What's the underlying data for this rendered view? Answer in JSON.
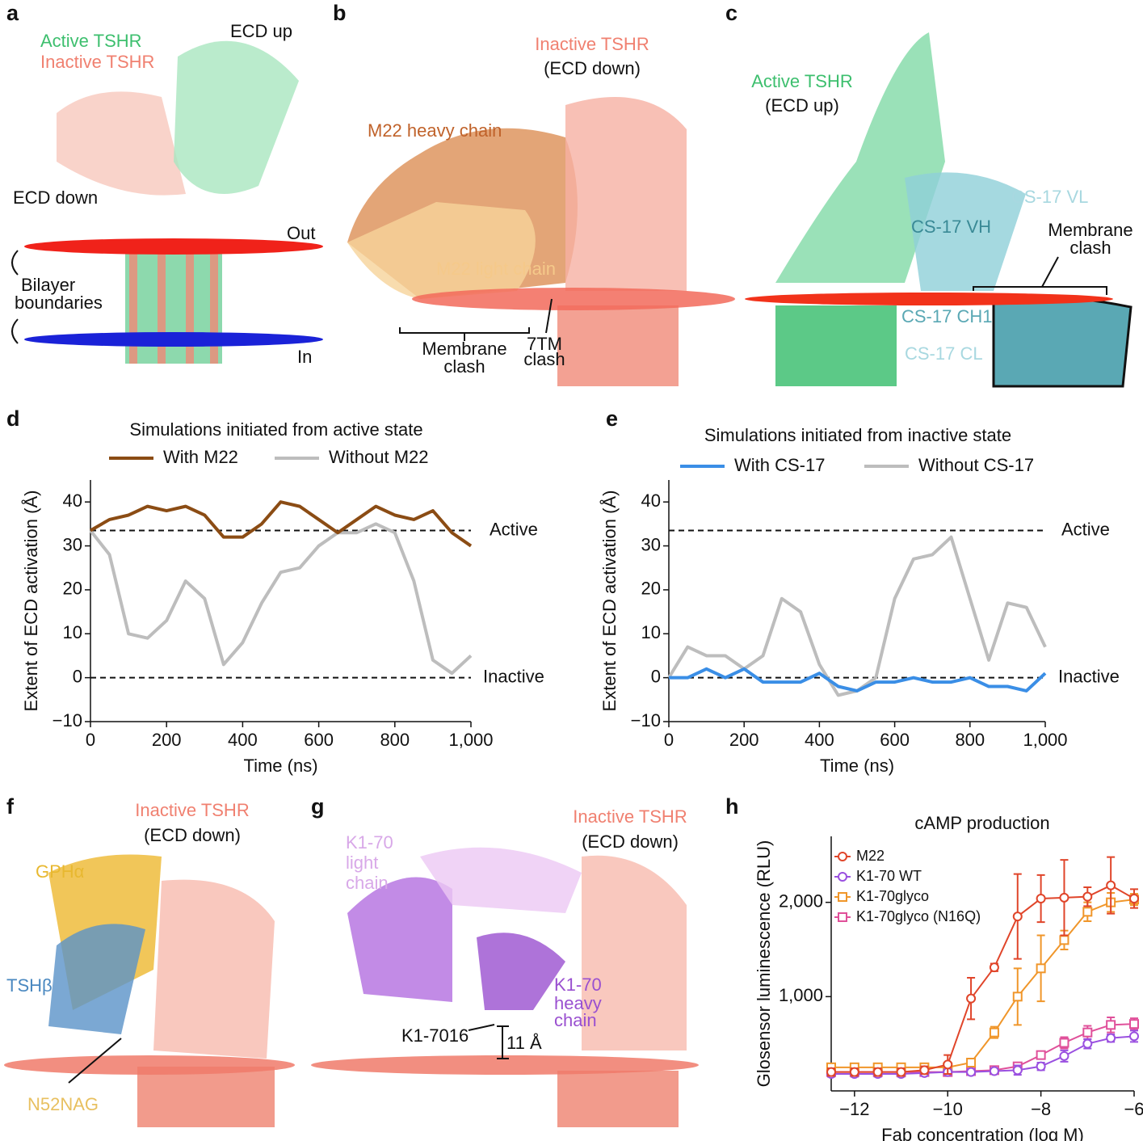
{
  "figure": {
    "a": {
      "panel": "a",
      "active": "Active TSHR",
      "inactive": "Inactive TSHR",
      "ecd_up": "ECD up",
      "ecd_down": "ECD down",
      "out": "Out",
      "bilayer": [
        "Bilayer",
        "boundaries"
      ],
      "in": "In"
    },
    "b": {
      "panel": "b",
      "title": [
        "Inactive TSHR",
        "(ECD down)"
      ],
      "heavy": "M22 heavy chain",
      "light": "M22 light chain",
      "membrane_clash": [
        "Membrane",
        "clash"
      ],
      "tm_clash": [
        "7TM",
        "clash"
      ]
    },
    "c": {
      "panel": "c",
      "title": [
        "Active TSHR",
        "(ECD up)"
      ],
      "vl": "CS-17 VL",
      "vh": "CS-17 VH",
      "membrane_clash": [
        "Membrane",
        "clash"
      ],
      "ch": "CS-17 CH1",
      "cl": "CS-17 CL"
    },
    "f": {
      "panel": "f",
      "title": [
        "Inactive TSHR",
        "(ECD down)"
      ],
      "gpha": "GPHα",
      "tshb": "TSHβ",
      "n52": "N52NAG"
    },
    "g": {
      "panel": "g",
      "title": [
        "Inactive TSHR",
        "(ECD down)"
      ],
      "light": [
        "K1-70",
        "light",
        "chain"
      ],
      "heavy": [
        "K1-70",
        "heavy",
        "chain"
      ],
      "k170": "K1-7016",
      "dist": "11 Å"
    },
    "h": {
      "panel": "h"
    },
    "d": {
      "panel": "d"
    },
    "e": {
      "panel": "e"
    }
  },
  "chart_data": [
    {
      "type": "line",
      "title": "Simulations initiated from active state",
      "x_label": "Time (ns)",
      "y_label": "Extent of ECD activation (Å)",
      "x": [
        0,
        50,
        100,
        150,
        200,
        250,
        300,
        350,
        400,
        450,
        500,
        550,
        600,
        650,
        700,
        750,
        800,
        850,
        900,
        950,
        1000
      ],
      "series": [
        {
          "name": "With M22",
          "color": "#8b4c14",
          "values": [
            33.5,
            36,
            37,
            39,
            38,
            39,
            37,
            32,
            32,
            35,
            40,
            39,
            36,
            33,
            36,
            39,
            37,
            36,
            38,
            33,
            30
          ]
        },
        {
          "name": "Without M22",
          "color": "#bdbdbd",
          "values": [
            33.5,
            28,
            10,
            9,
            13,
            22,
            18,
            3,
            8,
            17,
            24,
            25,
            30,
            33,
            33,
            35,
            33,
            22,
            4,
            1,
            5
          ]
        }
      ],
      "reference_lines": [
        {
          "value": 33.5,
          "label": "Active"
        },
        {
          "value": 0,
          "label": "Inactive"
        }
      ],
      "xlim": [
        0,
        1000
      ],
      "ylim": [
        -10,
        45
      ],
      "xticks": [
        0,
        200,
        400,
        600,
        800,
        {
          "value": 1000,
          "label": "1,000"
        }
      ],
      "yticks": [
        {
          "value": -10,
          "label": "−10"
        },
        0,
        10,
        20,
        30,
        40
      ]
    },
    {
      "type": "line",
      "title": "Simulations initiated from inactive state",
      "x_label": "Time (ns)",
      "y_label": "Extent of ECD activation (Å)",
      "x": [
        0,
        50,
        100,
        150,
        200,
        250,
        300,
        350,
        400,
        450,
        500,
        550,
        600,
        650,
        700,
        750,
        800,
        850,
        900,
        950,
        1000
      ],
      "series": [
        {
          "name": "With CS-17",
          "color": "#3a8ee6",
          "values": [
            0,
            0,
            2,
            0,
            2,
            -1,
            -1,
            -1,
            1,
            -2,
            -3,
            -1,
            -1,
            0,
            -1,
            -1,
            0,
            -2,
            -2,
            -3,
            1
          ]
        },
        {
          "name": "Without CS-17",
          "color": "#bdbdbd",
          "values": [
            0,
            7,
            5,
            5,
            2,
            5,
            18,
            15,
            3,
            -4,
            -3,
            0,
            18,
            27,
            28,
            32,
            18,
            4,
            17,
            16,
            7
          ]
        }
      ],
      "reference_lines": [
        {
          "value": 33.5,
          "label": "Active"
        },
        {
          "value": 0,
          "label": "Inactive"
        }
      ],
      "xlim": [
        0,
        1000
      ],
      "ylim": [
        -10,
        45
      ],
      "xticks": [
        0,
        200,
        400,
        600,
        800,
        {
          "value": 1000,
          "label": "1,000"
        }
      ],
      "yticks": [
        {
          "value": -10,
          "label": "−10"
        },
        0,
        10,
        20,
        30,
        40
      ]
    },
    {
      "type": "scatter",
      "title": "cAMP production",
      "x_label": "Fab concentration (log M)",
      "y_label": "Glosensor luminescence (RLU)",
      "x": [
        -12.5,
        -12,
        -11.5,
        -11,
        -10.5,
        -10,
        -9.5,
        -9,
        -8.5,
        -8,
        -7.5,
        -7,
        -6.5,
        -6
      ],
      "series": [
        {
          "name": "M22",
          "color": "#e0452a",
          "marker": "circle",
          "values": [
            200,
            200,
            200,
            200,
            220,
            280,
            980,
            1310,
            1850,
            2040,
            2050,
            2060,
            2180,
            2040
          ],
          "errors": [
            40,
            40,
            40,
            40,
            40,
            100,
            220,
            40,
            450,
            250,
            400,
            100,
            300,
            100
          ]
        },
        {
          "name": "K1-70 WT",
          "color": "#9a50e0",
          "marker": "circle",
          "values": [
            180,
            180,
            180,
            180,
            190,
            200,
            200,
            210,
            220,
            260,
            370,
            500,
            560,
            580
          ],
          "errors": [
            30,
            30,
            30,
            30,
            30,
            30,
            30,
            30,
            50,
            40,
            60,
            50,
            40,
            60
          ]
        },
        {
          "name": "K1-70glyco",
          "color": "#f0962a",
          "marker": "square",
          "values": [
            250,
            250,
            250,
            250,
            250,
            250,
            300,
            620,
            1000,
            1300,
            1600,
            1900,
            2000,
            2030
          ],
          "errors": [
            30,
            30,
            30,
            30,
            30,
            30,
            30,
            60,
            300,
            350,
            100,
            100,
            100,
            60
          ]
        },
        {
          "name": "K1-70glyco (N16Q)",
          "color": "#e0509a",
          "marker": "square",
          "values": [
            200,
            200,
            200,
            200,
            200,
            200,
            210,
            220,
            260,
            380,
            510,
            620,
            700,
            710
          ],
          "errors": [
            30,
            30,
            30,
            30,
            30,
            30,
            30,
            30,
            40,
            40,
            60,
            70,
            80,
            60
          ]
        }
      ],
      "xlim": [
        -12.5,
        -6
      ],
      "ylim": [
        0,
        2700
      ],
      "xticks": [
        {
          "value": -12,
          "label": "−12"
        },
        {
          "value": -10,
          "label": "−10"
        },
        {
          "value": -8,
          "label": "−8"
        },
        {
          "value": -6,
          "label": "−6"
        }
      ],
      "yticks": [
        {
          "value": 1000,
          "label": "1,000"
        },
        {
          "value": 2000,
          "label": "2,000"
        }
      ]
    }
  ]
}
